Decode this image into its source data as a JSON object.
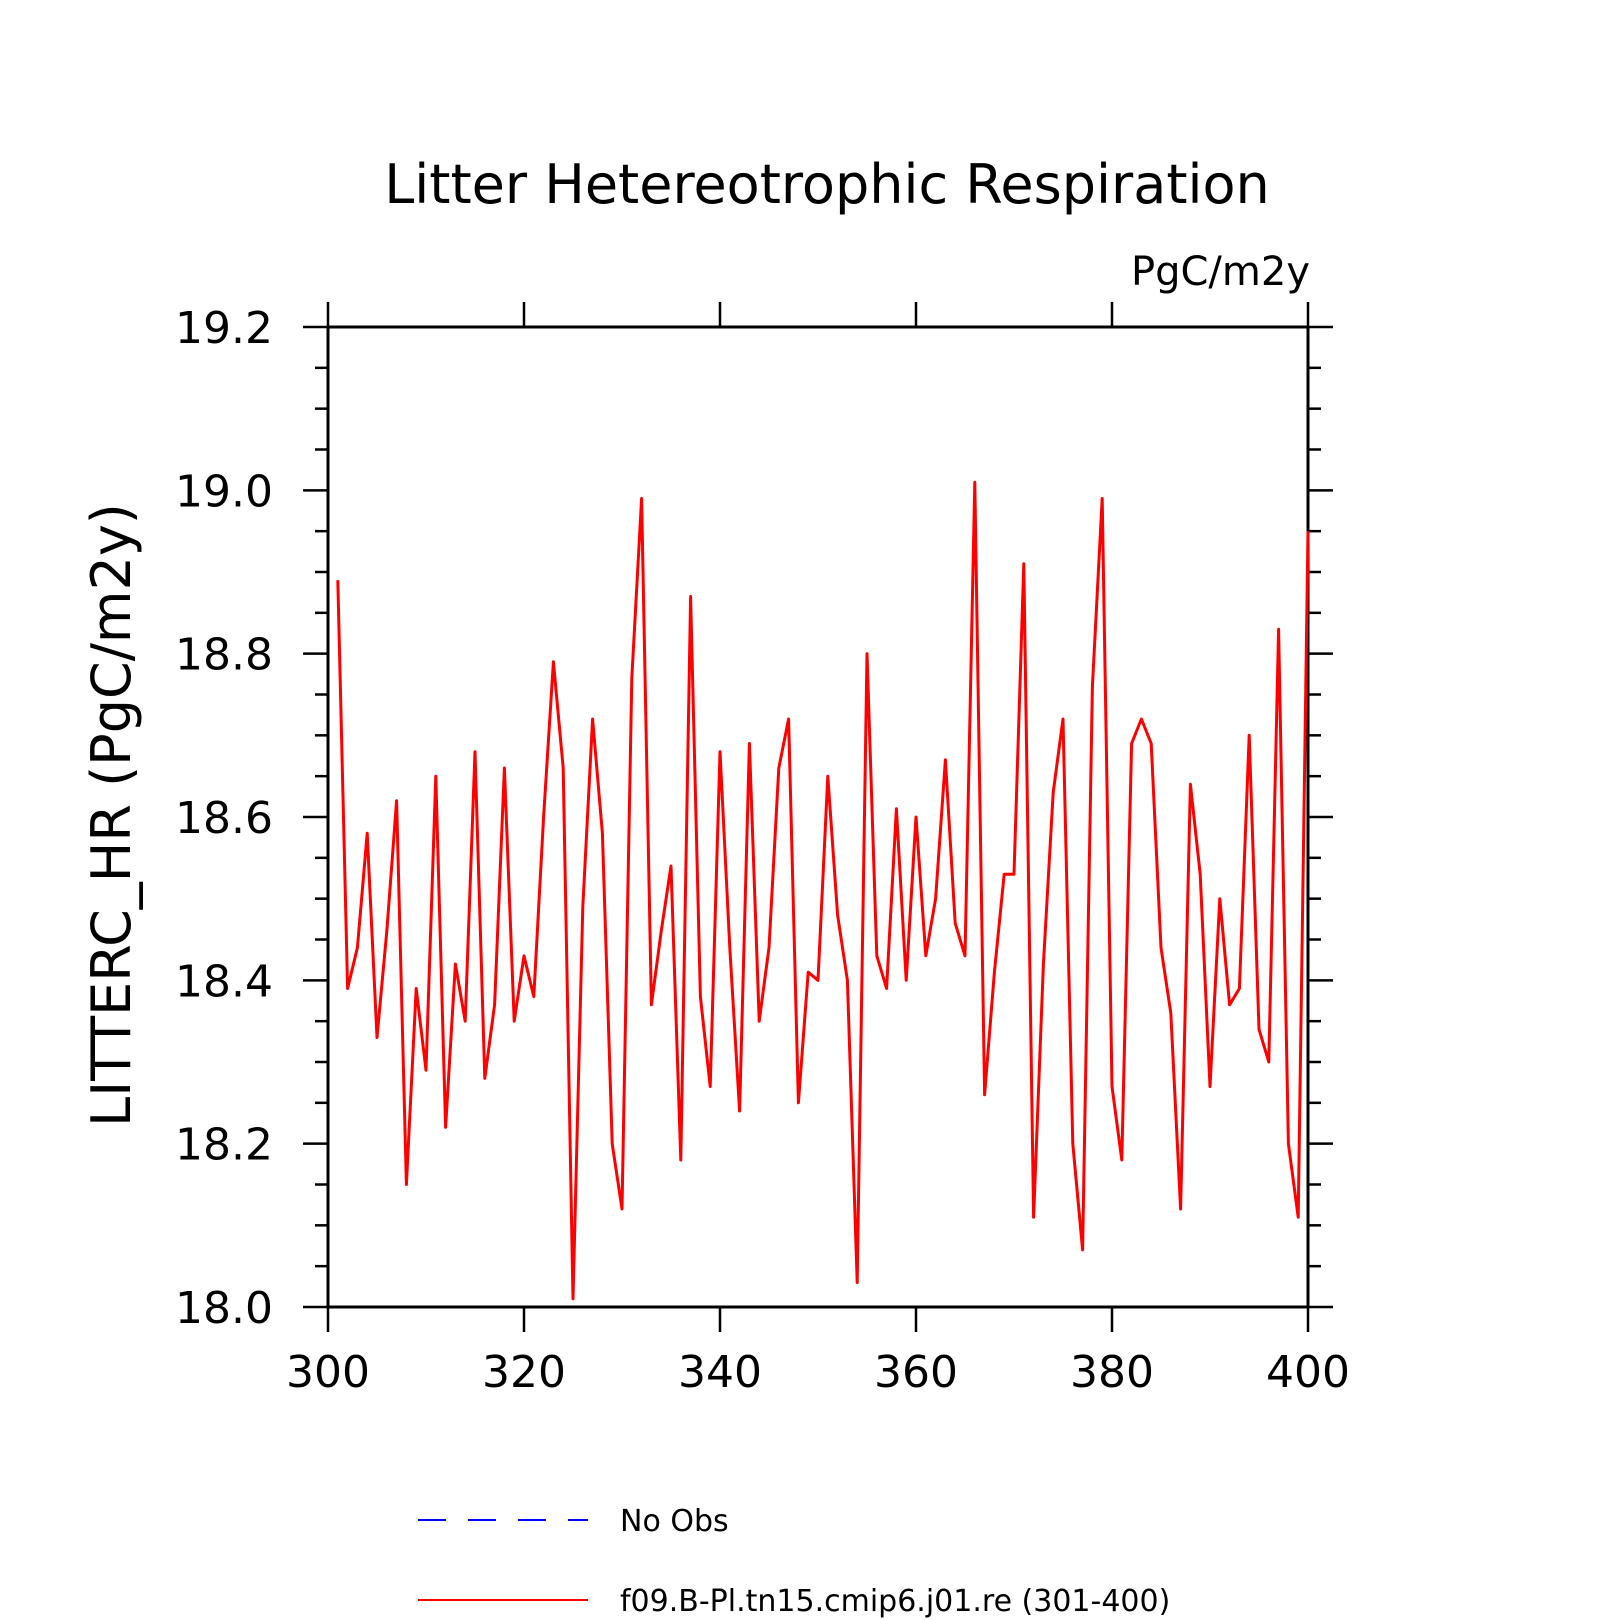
{
  "chart_data": {
    "type": "line",
    "title": "Litter Hetereotrophic Respiration",
    "units": "PgC/m2y",
    "ylabel": "LITTERC_HR  (PgC/m2y)",
    "xlabel": "",
    "xlim": [
      300,
      400
    ],
    "ylim": [
      18.0,
      19.2
    ],
    "x_ticks": [
      300,
      320,
      340,
      360,
      380,
      400
    ],
    "y_ticks": [
      18.0,
      18.2,
      18.4,
      18.6,
      18.8,
      19.0,
      19.2
    ],
    "x_tick_labels": [
      "300",
      "320",
      "340",
      "360",
      "380",
      "400"
    ],
    "y_tick_labels": [
      "18.0",
      "18.2",
      "18.4",
      "18.6",
      "18.8",
      "19.0",
      "19.2"
    ],
    "legend_position": "bottom",
    "series": [
      {
        "name": "No Obs",
        "color": "#0000ff",
        "dash": "dashed",
        "x": [],
        "y": []
      },
      {
        "name": "f09.B-Pl.tn15.cmip6.j01.re (301-400)",
        "color": "#ff0000",
        "dash": "solid",
        "x": [
          301,
          302,
          303,
          304,
          305,
          306,
          307,
          308,
          309,
          310,
          311,
          312,
          313,
          314,
          315,
          316,
          317,
          318,
          319,
          320,
          321,
          322,
          323,
          324,
          325,
          326,
          327,
          328,
          329,
          330,
          331,
          332,
          333,
          334,
          335,
          336,
          337,
          338,
          339,
          340,
          341,
          342,
          343,
          344,
          345,
          346,
          347,
          348,
          349,
          350,
          351,
          352,
          353,
          354,
          355,
          356,
          357,
          358,
          359,
          360,
          361,
          362,
          363,
          364,
          365,
          366,
          367,
          368,
          369,
          370,
          371,
          372,
          373,
          374,
          375,
          376,
          377,
          378,
          379,
          380,
          381,
          382,
          383,
          384,
          385,
          386,
          387,
          388,
          389,
          390,
          391,
          392,
          393,
          394,
          395,
          396,
          397,
          398,
          399,
          400
        ],
        "y": [
          18.89,
          18.39,
          18.44,
          18.58,
          18.33,
          18.46,
          18.62,
          18.15,
          18.39,
          18.29,
          18.65,
          18.22,
          18.42,
          18.35,
          18.68,
          18.28,
          18.37,
          18.66,
          18.35,
          18.43,
          18.38,
          18.6,
          18.79,
          18.66,
          18.01,
          18.49,
          18.72,
          18.58,
          18.2,
          18.12,
          18.77,
          18.99,
          18.37,
          18.46,
          18.54,
          18.18,
          18.87,
          18.38,
          18.27,
          18.68,
          18.44,
          18.24,
          18.69,
          18.35,
          18.44,
          18.66,
          18.72,
          18.25,
          18.41,
          18.4,
          18.65,
          18.48,
          18.4,
          18.03,
          18.8,
          18.43,
          18.39,
          18.61,
          18.4,
          18.6,
          18.43,
          18.5,
          18.67,
          18.47,
          18.43,
          19.01,
          18.26,
          18.41,
          18.53,
          18.53,
          18.91,
          18.11,
          18.42,
          18.63,
          18.72,
          18.2,
          18.07,
          18.76,
          18.99,
          18.27,
          18.18,
          18.69,
          18.72,
          18.69,
          18.44,
          18.36,
          18.12,
          18.64,
          18.53,
          18.27,
          18.5,
          18.37,
          18.39,
          18.7,
          18.34,
          18.3,
          18.83,
          18.2,
          18.11,
          18.95
        ]
      }
    ]
  }
}
